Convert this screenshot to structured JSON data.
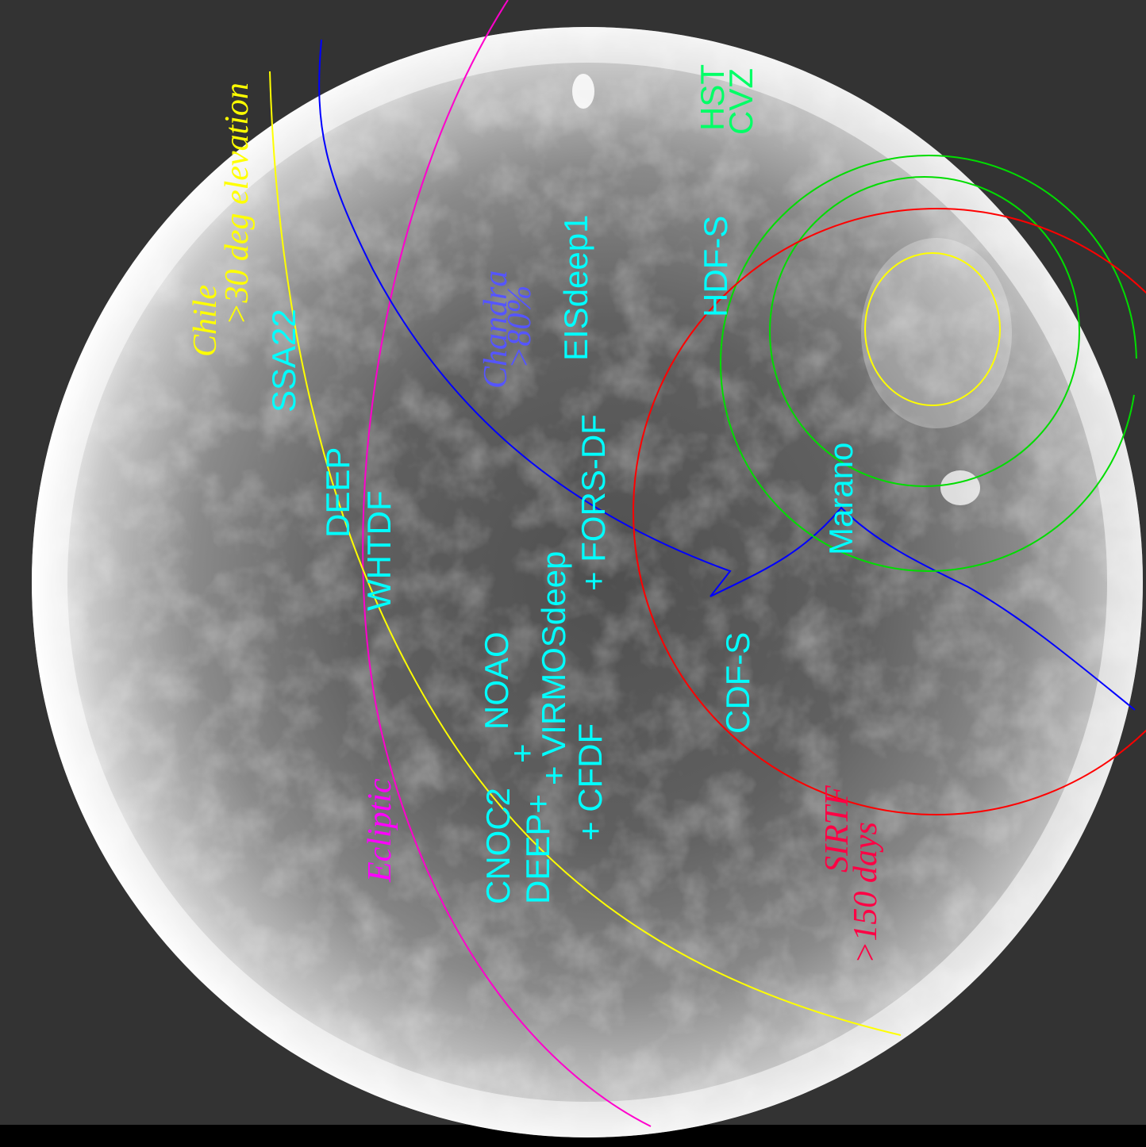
{
  "colors": {
    "background": "#333333",
    "sky_light": "#ffffff",
    "sky_dark": "#5a5a5a",
    "cyan": "#00ffff",
    "yellow": "#ffff00",
    "magenta": "#ff00cc",
    "blue": "#0000ff",
    "green": "#00dd00",
    "red": "#ff0000",
    "chandra": "#5555ff"
  },
  "constraints": [
    {
      "id": "chile",
      "name": "Chile",
      "detail": ">30 deg elevation",
      "color": "#ffff00"
    },
    {
      "id": "ecliptic",
      "name": "Ecliptic",
      "detail": "",
      "color": "#ff00cc"
    },
    {
      "id": "chandra",
      "name": "Chandra",
      "detail": ">80%",
      "color": "#0000ff"
    },
    {
      "id": "hst",
      "name": "HST",
      "detail": "CVZ",
      "color": "#00dd00"
    },
    {
      "id": "sirtf",
      "name": "SIRTF",
      "detail": ">150 days",
      "color": "#ff0000"
    }
  ],
  "fields": {
    "ssa22": "SSA22",
    "deep": "DEEP",
    "whtdf": "WHTDF",
    "chandra_line1": "Chandra",
    "chandra_line2": ">80%",
    "eisdeep1": "EISdeep1",
    "fors_df": "+ FORS-DF",
    "virmosdeep": "+ VIRMOSdeep",
    "noao": "NOAO",
    "cfdf": "+ CFDF",
    "cnoc2": "CNOC2",
    "deep_plus": "DEEP+",
    "hdf_s": "HDF-S",
    "cdf_s": "CDF-S",
    "marano": "Marano",
    "hst_line1": "HST",
    "hst_line2": "CVZ",
    "sirtf_line1": "SIRTF",
    "sirtf_line2": ">150 days",
    "chile_line1": "Chile",
    "chile_line2": ">30 deg elevation",
    "ecliptic": "Ecliptic",
    "marker_plus": "+"
  }
}
